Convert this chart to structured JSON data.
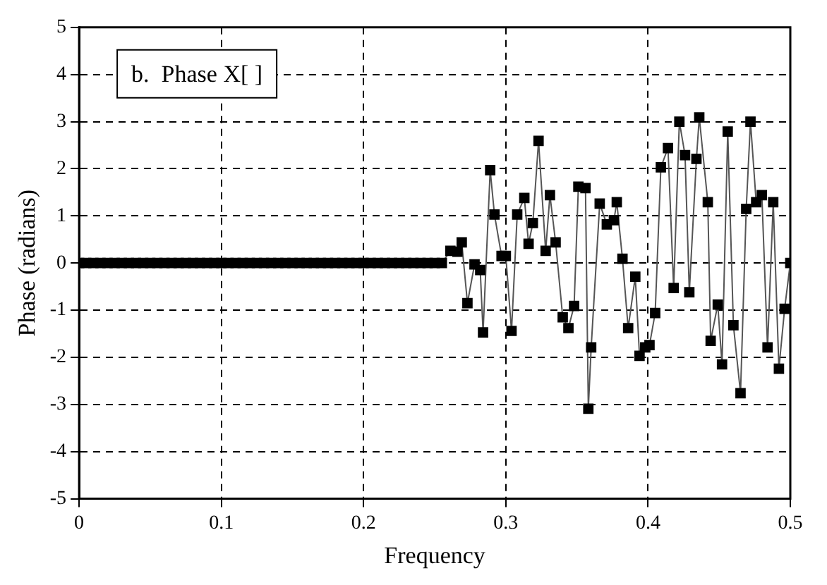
{
  "chart_data": {
    "type": "line",
    "title": "b.  Phase X[ ]",
    "xlabel": "Frequency",
    "ylabel": "Phase (radians)",
    "xlim": [
      0,
      0.5
    ],
    "xticks": [
      0,
      0.1,
      0.2,
      0.3,
      0.4,
      0.5
    ],
    "ylim": [
      -5,
      5
    ],
    "yticks": [
      -5,
      -4,
      -3,
      -2,
      -1,
      0,
      1,
      2,
      3,
      4,
      5
    ],
    "grid": true,
    "legend": false,
    "marker": "square",
    "line_style": "solid",
    "series": [
      {
        "color": "#000000",
        "x": [
          0,
          0.005,
          0.01,
          0.015,
          0.02,
          0.025,
          0.03,
          0.035,
          0.04,
          0.045,
          0.05,
          0.055,
          0.06,
          0.065,
          0.07,
          0.075,
          0.08,
          0.085,
          0.09,
          0.095,
          0.1,
          0.105,
          0.11,
          0.115,
          0.12,
          0.125,
          0.13,
          0.135,
          0.14,
          0.145,
          0.15,
          0.155,
          0.16,
          0.165,
          0.17,
          0.175,
          0.18,
          0.185,
          0.19,
          0.195,
          0.2,
          0.205,
          0.21,
          0.215,
          0.22,
          0.225,
          0.23,
          0.235,
          0.24,
          0.245,
          0.25,
          0.255,
          0.261,
          0.266,
          0.269,
          0.273,
          0.278,
          0.282,
          0.284,
          0.289,
          0.292,
          0.297,
          0.3,
          0.304,
          0.308,
          0.313,
          0.316,
          0.319,
          0.323,
          0.328,
          0.331,
          0.335,
          0.34,
          0.344,
          0.348,
          0.351,
          0.356,
          0.358,
          0.36,
          0.366,
          0.371,
          0.376,
          0.378,
          0.382,
          0.386,
          0.391,
          0.394,
          0.398,
          0.401,
          0.405,
          0.409,
          0.414,
          0.418,
          0.422,
          0.426,
          0.429,
          0.434,
          0.436,
          0.442,
          0.444,
          0.449,
          0.452,
          0.456,
          0.46,
          0.465,
          0.469,
          0.472,
          0.476,
          0.48,
          0.484,
          0.488,
          0.492,
          0.496,
          0.5
        ],
        "values": [
          0,
          0,
          0,
          0,
          0,
          0,
          0,
          0,
          0,
          0,
          0,
          0,
          0,
          0,
          0,
          0,
          0,
          0,
          0,
          0,
          0,
          0,
          0,
          0,
          0,
          0,
          0,
          0,
          0,
          0,
          0,
          0,
          0,
          0,
          0,
          0,
          0,
          0,
          0,
          0,
          0,
          0,
          0,
          0,
          0,
          0,
          0,
          0,
          0,
          0,
          0,
          0,
          0.26,
          0.24,
          0.44,
          -0.85,
          -0.03,
          -0.15,
          -1.47,
          1.97,
          1.03,
          0.15,
          0.15,
          -1.44,
          1.03,
          1.38,
          0.41,
          0.85,
          2.59,
          0.26,
          1.44,
          0.44,
          -1.15,
          -1.38,
          -0.91,
          1.62,
          1.59,
          -3.09,
          -1.79,
          1.26,
          0.82,
          0.91,
          1.29,
          0.09,
          -1.38,
          -0.29,
          -1.97,
          -1.79,
          -1.74,
          -1.06,
          2.03,
          2.44,
          -0.53,
          3.0,
          2.29,
          -0.62,
          2.21,
          3.09,
          1.29,
          -1.65,
          -0.88,
          -2.15,
          2.79,
          -1.32,
          -2.76,
          1.15,
          3.0,
          1.29,
          1.44,
          -1.79,
          1.29,
          -2.24,
          -0.97,
          0
        ]
      }
    ]
  }
}
